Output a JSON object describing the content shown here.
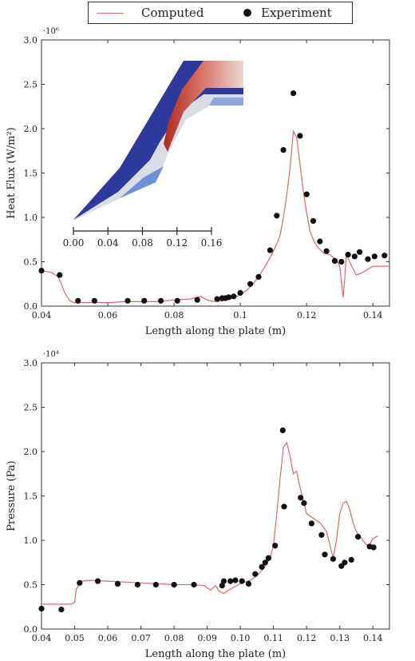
{
  "legend": {
    "computed_label": "Computed",
    "experiment_label": "Experiment",
    "computed_color": "#e06666",
    "experiment_color": "#111111"
  },
  "chart_data": [
    {
      "type": "line",
      "ylabel": "Heat Flux (W/m²)",
      "xlabel": "Length along the plate (m)",
      "y_exponent": "·10⁶",
      "xlim": [
        0.04,
        0.145
      ],
      "ylim": [
        0,
        3.0
      ],
      "xticks": [
        0.04,
        0.06,
        0.08,
        0.1,
        0.12,
        0.14
      ],
      "xtick_labels": [
        "0.04",
        "0.06",
        "0.08",
        "0.1",
        "0.12",
        "0.14"
      ],
      "yticks": [
        0,
        0.5,
        1.0,
        1.5,
        2.0,
        2.5,
        3.0
      ],
      "ytick_labels": [
        "0.0",
        "0.5",
        "1.0",
        "1.5",
        "2.0",
        "2.5",
        "3.0"
      ],
      "series": [
        {
          "name": "Computed",
          "kind": "line",
          "x": [
            0.04,
            0.043,
            0.045,
            0.046,
            0.047,
            0.0485,
            0.05,
            0.055,
            0.06,
            0.065,
            0.07,
            0.075,
            0.08,
            0.085,
            0.088,
            0.09,
            0.092,
            0.095,
            0.098,
            0.1,
            0.102,
            0.104,
            0.106,
            0.108,
            0.11,
            0.111,
            0.112,
            0.113,
            0.114,
            0.115,
            0.116,
            0.117,
            0.118,
            0.119,
            0.12,
            0.121,
            0.122,
            0.123,
            0.125,
            0.127,
            0.128,
            0.129,
            0.13,
            0.131,
            0.1315,
            0.132,
            0.133,
            0.134,
            0.135,
            0.137,
            0.14,
            0.145
          ],
          "y": [
            0.4,
            0.38,
            0.33,
            0.25,
            0.15,
            0.06,
            0.04,
            0.04,
            0.04,
            0.05,
            0.05,
            0.05,
            0.07,
            0.08,
            0.11,
            0.07,
            0.05,
            0.06,
            0.09,
            0.13,
            0.18,
            0.26,
            0.36,
            0.48,
            0.62,
            0.7,
            0.8,
            1.0,
            1.25,
            1.55,
            1.97,
            1.9,
            1.6,
            1.3,
            1.05,
            0.85,
            0.75,
            0.68,
            0.6,
            0.58,
            0.55,
            0.52,
            0.45,
            0.1,
            0.3,
            0.58,
            0.5,
            0.42,
            0.35,
            0.38,
            0.45,
            0.45
          ]
        },
        {
          "name": "Experiment",
          "kind": "scatter",
          "x": [
            0.04,
            0.0455,
            0.051,
            0.056,
            0.066,
            0.071,
            0.076,
            0.081,
            0.087,
            0.093,
            0.0945,
            0.0955,
            0.0965,
            0.098,
            0.1,
            0.103,
            0.1055,
            0.109,
            0.111,
            0.113,
            0.116,
            0.118,
            0.12,
            0.122,
            0.124,
            0.126,
            0.1285,
            0.1305,
            0.1325,
            0.1345,
            0.136,
            0.1385,
            0.1405,
            0.1435
          ],
          "y": [
            0.4,
            0.35,
            0.06,
            0.06,
            0.06,
            0.06,
            0.06,
            0.06,
            0.07,
            0.08,
            0.09,
            0.09,
            0.1,
            0.11,
            0.15,
            0.25,
            0.33,
            0.63,
            1.02,
            1.76,
            2.4,
            1.92,
            1.26,
            0.96,
            0.73,
            0.62,
            0.51,
            0.5,
            0.58,
            0.56,
            0.61,
            0.53,
            0.56,
            0.57
          ]
        }
      ]
    },
    {
      "type": "line",
      "ylabel": "Pressure (Pa)",
      "xlabel": "Length along the plate (m)",
      "y_exponent": "·10⁴",
      "xlim": [
        0.04,
        0.145
      ],
      "ylim": [
        0,
        3.0
      ],
      "xticks": [
        0.04,
        0.05,
        0.06,
        0.07,
        0.08,
        0.09,
        0.1,
        0.11,
        0.12,
        0.13,
        0.14
      ],
      "xtick_labels": [
        "0.04",
        "0.05",
        "0.06",
        "0.07",
        "0.08",
        "0.09",
        "0.10",
        "0.11",
        "0.12",
        "0.13",
        "0.14"
      ],
      "yticks": [
        0,
        0.5,
        1.0,
        1.5,
        2.0,
        2.5,
        3.0
      ],
      "ytick_labels": [
        "0.0",
        "0.5",
        "1.0",
        "1.5",
        "2.0",
        "2.5",
        "3.0"
      ],
      "series": [
        {
          "name": "Computed",
          "kind": "line",
          "x": [
            0.04,
            0.046,
            0.0475,
            0.049,
            0.05,
            0.0505,
            0.052,
            0.055,
            0.06,
            0.065,
            0.07,
            0.075,
            0.08,
            0.085,
            0.089,
            0.091,
            0.0925,
            0.0935,
            0.095,
            0.097,
            0.1,
            0.103,
            0.105,
            0.107,
            0.109,
            0.11,
            0.111,
            0.112,
            0.113,
            0.114,
            0.115,
            0.116,
            0.117,
            0.118,
            0.119,
            0.12,
            0.122,
            0.124,
            0.126,
            0.127,
            0.128,
            0.129,
            0.13,
            0.131,
            0.132,
            0.133,
            0.134,
            0.135,
            0.136,
            0.137,
            0.138,
            0.139,
            0.14,
            0.1415
          ],
          "y": [
            0.28,
            0.28,
            0.28,
            0.28,
            0.3,
            0.45,
            0.54,
            0.55,
            0.54,
            0.53,
            0.52,
            0.51,
            0.5,
            0.5,
            0.49,
            0.44,
            0.49,
            0.43,
            0.4,
            0.45,
            0.51,
            0.55,
            0.6,
            0.68,
            0.8,
            0.95,
            1.3,
            1.7,
            2.05,
            2.1,
            1.95,
            1.75,
            1.78,
            1.6,
            1.45,
            1.3,
            1.25,
            1.2,
            1.1,
            0.95,
            0.8,
            1.0,
            1.3,
            1.42,
            1.44,
            1.35,
            1.2,
            1.1,
            1.05,
            1.0,
            0.95,
            0.95,
            1.02,
            1.05
          ]
        },
        {
          "name": "Experiment",
          "kind": "scatter",
          "x": [
            0.04,
            0.046,
            0.0515,
            0.057,
            0.063,
            0.069,
            0.0745,
            0.08,
            0.086,
            0.0945,
            0.095,
            0.097,
            0.0985,
            0.1005,
            0.1025,
            0.1045,
            0.1065,
            0.1075,
            0.1085,
            0.1105,
            0.1128,
            0.1132,
            0.1182,
            0.1192,
            0.1215,
            0.1245,
            0.1255,
            0.128,
            0.1305,
            0.1315,
            0.1335,
            0.1355,
            0.139,
            0.1402
          ],
          "y": [
            0.23,
            0.22,
            0.52,
            0.54,
            0.51,
            0.5,
            0.5,
            0.5,
            0.5,
            0.49,
            0.54,
            0.54,
            0.55,
            0.54,
            0.51,
            0.62,
            0.7,
            0.75,
            0.8,
            0.94,
            2.24,
            1.38,
            1.48,
            1.42,
            1.19,
            1.06,
            0.84,
            0.79,
            0.71,
            0.75,
            0.78,
            1.04,
            0.93,
            0.92
          ]
        }
      ]
    }
  ],
  "inset": {
    "tick_labels": [
      "0.00",
      "0.04",
      "0.08",
      "0.12",
      "0.16"
    ],
    "colors": {
      "solid": "#2d3a9c",
      "hot": "#c0392b",
      "grey": "#d8dde6",
      "light_blue": "#6f8fd6"
    }
  }
}
